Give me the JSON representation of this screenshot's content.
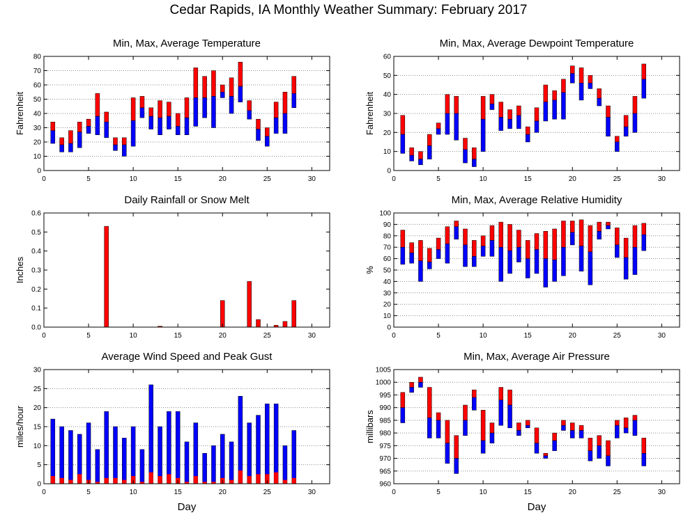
{
  "title": "Cedar Rapids, IA Monthly Weather Summary: February 2017",
  "colors": {
    "max_segment": "#ff0000",
    "min_segment": "#0000ff",
    "grid": "#888888",
    "axis": "#000000"
  },
  "chart_data": [
    {
      "id": "temperature",
      "type": "bar",
      "title": "Min, Max, Average Temperature",
      "ylabel": "Fahrenheit",
      "xlabel": "",
      "xlim": [
        0,
        32
      ],
      "ylim": [
        0,
        80
      ],
      "xticks": [
        0,
        5,
        10,
        15,
        20,
        25,
        30
      ],
      "yticks": [
        0,
        10,
        20,
        30,
        40,
        50,
        60,
        70,
        80
      ],
      "grid": true,
      "bar_kind": "range",
      "series": [
        {
          "name": "",
          "field": "min"
        },
        {
          "name": "",
          "field": "avg"
        },
        {
          "name": "",
          "field": "max"
        }
      ],
      "points": [
        {
          "day": 1,
          "min": 19,
          "avg": 28,
          "max": 34
        },
        {
          "day": 2,
          "min": 13,
          "avg": 18,
          "max": 23
        },
        {
          "day": 3,
          "min": 13,
          "avg": 19,
          "max": 28
        },
        {
          "day": 4,
          "min": 16,
          "avg": 27,
          "max": 34
        },
        {
          "day": 5,
          "min": 26,
          "avg": 31,
          "max": 36
        },
        {
          "day": 6,
          "min": 25,
          "avg": 38,
          "max": 54
        },
        {
          "day": 7,
          "min": 23,
          "avg": 34,
          "max": 41
        },
        {
          "day": 8,
          "min": 14,
          "avg": 18,
          "max": 23
        },
        {
          "day": 9,
          "min": 10,
          "avg": 18,
          "max": 23
        },
        {
          "day": 10,
          "min": 17,
          "avg": 35,
          "max": 51
        },
        {
          "day": 11,
          "min": 37,
          "avg": 44,
          "max": 52
        },
        {
          "day": 12,
          "min": 29,
          "avg": 38,
          "max": 44
        },
        {
          "day": 13,
          "min": 25,
          "avg": 37,
          "max": 49
        },
        {
          "day": 14,
          "min": 29,
          "avg": 38,
          "max": 48
        },
        {
          "day": 15,
          "min": 25,
          "avg": 31,
          "max": 40
        },
        {
          "day": 16,
          "min": 25,
          "avg": 37,
          "max": 51
        },
        {
          "day": 17,
          "min": 31,
          "avg": 51,
          "max": 72
        },
        {
          "day": 18,
          "min": 37,
          "avg": 51,
          "max": 66
        },
        {
          "day": 19,
          "min": 30,
          "avg": 52,
          "max": 70
        },
        {
          "day": 20,
          "min": 51,
          "avg": 55,
          "max": 60
        },
        {
          "day": 21,
          "min": 40,
          "avg": 52,
          "max": 65
        },
        {
          "day": 22,
          "min": 48,
          "avg": 59,
          "max": 76
        },
        {
          "day": 23,
          "min": 36,
          "avg": 42,
          "max": 49
        },
        {
          "day": 24,
          "min": 21,
          "avg": 29,
          "max": 36
        },
        {
          "day": 25,
          "min": 17,
          "avg": 24,
          "max": 30
        },
        {
          "day": 26,
          "min": 26,
          "avg": 37,
          "max": 48
        },
        {
          "day": 27,
          "min": 26,
          "avg": 40,
          "max": 55
        },
        {
          "day": 28,
          "min": 44,
          "avg": 54,
          "max": 66
        }
      ]
    },
    {
      "id": "dewpoint",
      "type": "bar",
      "title": "Min, Max, Average Dewpoint Temperature",
      "ylabel": "Fahrenheit",
      "xlabel": "",
      "xlim": [
        0,
        32
      ],
      "ylim": [
        0,
        60
      ],
      "xticks": [
        0,
        5,
        10,
        15,
        20,
        25,
        30
      ],
      "yticks": [
        0,
        10,
        20,
        30,
        40,
        50,
        60
      ],
      "grid": true,
      "bar_kind": "range",
      "series": [
        {
          "name": "",
          "field": "min"
        },
        {
          "name": "",
          "field": "avg"
        },
        {
          "name": "",
          "field": "max"
        }
      ],
      "points": [
        {
          "day": 1,
          "min": 9,
          "avg": 19,
          "max": 29
        },
        {
          "day": 2,
          "min": 5,
          "avg": 8,
          "max": 12
        },
        {
          "day": 3,
          "min": 3,
          "avg": 6,
          "max": 10
        },
        {
          "day": 4,
          "min": 6,
          "avg": 13,
          "max": 19
        },
        {
          "day": 5,
          "min": 19,
          "avg": 22,
          "max": 25
        },
        {
          "day": 6,
          "min": 19,
          "avg": 30,
          "max": 40
        },
        {
          "day": 7,
          "min": 16,
          "avg": 30,
          "max": 39
        },
        {
          "day": 8,
          "min": 4,
          "avg": 11,
          "max": 17
        },
        {
          "day": 9,
          "min": 2,
          "avg": 6,
          "max": 12
        },
        {
          "day": 10,
          "min": 10,
          "avg": 27,
          "max": 39
        },
        {
          "day": 11,
          "min": 32,
          "avg": 35,
          "max": 40
        },
        {
          "day": 12,
          "min": 21,
          "avg": 28,
          "max": 36
        },
        {
          "day": 13,
          "min": 22,
          "avg": 27,
          "max": 32
        },
        {
          "day": 14,
          "min": 22,
          "avg": 29,
          "max": 34
        },
        {
          "day": 15,
          "min": 15,
          "avg": 19,
          "max": 23
        },
        {
          "day": 16,
          "min": 20,
          "avg": 26,
          "max": 33
        },
        {
          "day": 17,
          "min": 26,
          "avg": 36,
          "max": 45
        },
        {
          "day": 18,
          "min": 27,
          "avg": 37,
          "max": 42
        },
        {
          "day": 19,
          "min": 27,
          "avg": 41,
          "max": 48
        },
        {
          "day": 20,
          "min": 46,
          "avg": 51,
          "max": 55
        },
        {
          "day": 21,
          "min": 37,
          "avg": 46,
          "max": 54
        },
        {
          "day": 22,
          "min": 43,
          "avg": 46,
          "max": 50
        },
        {
          "day": 23,
          "min": 34,
          "avg": 38,
          "max": 43
        },
        {
          "day": 24,
          "min": 18,
          "avg": 28,
          "max": 34
        },
        {
          "day": 25,
          "min": 10,
          "avg": 15,
          "max": 18
        },
        {
          "day": 26,
          "min": 18,
          "avg": 23,
          "max": 29
        },
        {
          "day": 27,
          "min": 20,
          "avg": 30,
          "max": 39
        },
        {
          "day": 28,
          "min": 38,
          "avg": 48,
          "max": 56
        }
      ]
    },
    {
      "id": "rainfall",
      "type": "bar",
      "title": "Daily Rainfall or Snow Melt",
      "ylabel": "Inches",
      "xlabel": "",
      "xlim": [
        0,
        32
      ],
      "ylim": [
        0,
        0.6
      ],
      "xticks": [
        0,
        5,
        10,
        15,
        20,
        25,
        30
      ],
      "yticks": [
        0.0,
        0.1,
        0.2,
        0.3,
        0.4,
        0.5,
        0.6
      ],
      "ytick_labels": [
        "0.0",
        "0.1",
        "0.2",
        "0.3",
        "0.4",
        "0.5",
        "0.6"
      ],
      "grid": false,
      "bar_kind": "simple",
      "series": [
        {
          "name": "",
          "field": "value"
        }
      ],
      "points": [
        {
          "day": 7,
          "value": 0.53
        },
        {
          "day": 13,
          "value": 0.005
        },
        {
          "day": 20,
          "value": 0.14
        },
        {
          "day": 23,
          "value": 0.24
        },
        {
          "day": 24,
          "value": 0.04
        },
        {
          "day": 26,
          "value": 0.01
        },
        {
          "day": 27,
          "value": 0.03
        },
        {
          "day": 28,
          "value": 0.14
        }
      ]
    },
    {
      "id": "humidity",
      "type": "bar",
      "title": "Min, Max, Average Relative Humidity",
      "ylabel": "%",
      "xlabel": "",
      "xlim": [
        0,
        32
      ],
      "ylim": [
        0,
        100
      ],
      "xticks": [
        0,
        5,
        10,
        15,
        20,
        25,
        30
      ],
      "yticks": [
        0,
        10,
        20,
        30,
        40,
        50,
        60,
        70,
        80,
        90,
        100
      ],
      "grid": true,
      "bar_kind": "range",
      "series": [
        {
          "name": "",
          "field": "min"
        },
        {
          "name": "",
          "field": "avg"
        },
        {
          "name": "",
          "field": "max"
        }
      ],
      "points": [
        {
          "day": 1,
          "min": 55,
          "avg": 70,
          "max": 85
        },
        {
          "day": 2,
          "min": 56,
          "avg": 65,
          "max": 74
        },
        {
          "day": 3,
          "min": 40,
          "avg": 58,
          "max": 76
        },
        {
          "day": 4,
          "min": 51,
          "avg": 57,
          "max": 69
        },
        {
          "day": 5,
          "min": 60,
          "avg": 68,
          "max": 78
        },
        {
          "day": 6,
          "min": 56,
          "avg": 73,
          "max": 88
        },
        {
          "day": 7,
          "min": 77,
          "avg": 88,
          "max": 93
        },
        {
          "day": 8,
          "min": 53,
          "avg": 72,
          "max": 86
        },
        {
          "day": 9,
          "min": 53,
          "avg": 62,
          "max": 76
        },
        {
          "day": 10,
          "min": 62,
          "avg": 71,
          "max": 80
        },
        {
          "day": 11,
          "min": 62,
          "avg": 76,
          "max": 89
        },
        {
          "day": 12,
          "min": 40,
          "avg": 70,
          "max": 92
        },
        {
          "day": 13,
          "min": 47,
          "avg": 67,
          "max": 90
        },
        {
          "day": 14,
          "min": 57,
          "avg": 70,
          "max": 85
        },
        {
          "day": 15,
          "min": 43,
          "avg": 60,
          "max": 76
        },
        {
          "day": 16,
          "min": 47,
          "avg": 68,
          "max": 82
        },
        {
          "day": 17,
          "min": 35,
          "avg": 60,
          "max": 84
        },
        {
          "day": 18,
          "min": 40,
          "avg": 59,
          "max": 86
        },
        {
          "day": 19,
          "min": 45,
          "avg": 70,
          "max": 93
        },
        {
          "day": 20,
          "min": 72,
          "avg": 83,
          "max": 93
        },
        {
          "day": 21,
          "min": 49,
          "avg": 71,
          "max": 94
        },
        {
          "day": 22,
          "min": 37,
          "avg": 66,
          "max": 89
        },
        {
          "day": 23,
          "min": 77,
          "avg": 84,
          "max": 92
        },
        {
          "day": 24,
          "min": 86,
          "avg": 89,
          "max": 92
        },
        {
          "day": 25,
          "min": 61,
          "avg": 72,
          "max": 87
        },
        {
          "day": 26,
          "min": 42,
          "avg": 61,
          "max": 78
        },
        {
          "day": 27,
          "min": 46,
          "avg": 70,
          "max": 89
        },
        {
          "day": 28,
          "min": 67,
          "avg": 81,
          "max": 91
        }
      ]
    },
    {
      "id": "wind",
      "type": "bar",
      "title": "Average Wind Speed and Peak Gust",
      "ylabel": "miles/hour",
      "xlabel": "Day",
      "xlim": [
        0,
        32
      ],
      "ylim": [
        0,
        30
      ],
      "xticks": [
        0,
        5,
        10,
        15,
        20,
        25,
        30
      ],
      "yticks": [
        0,
        5,
        10,
        15,
        20,
        25,
        30
      ],
      "grid": true,
      "bar_kind": "stacked",
      "series": [
        {
          "name": "",
          "field": "avg"
        },
        {
          "name": "",
          "field": "gust"
        }
      ],
      "points": [
        {
          "day": 1,
          "avg": 2,
          "gust": 17
        },
        {
          "day": 2,
          "avg": 1.5,
          "gust": 15
        },
        {
          "day": 3,
          "avg": 1,
          "gust": 14
        },
        {
          "day": 4,
          "avg": 2.5,
          "gust": 13
        },
        {
          "day": 5,
          "avg": 1,
          "gust": 16
        },
        {
          "day": 6,
          "avg": 0.5,
          "gust": 9
        },
        {
          "day": 7,
          "avg": 1.5,
          "gust": 19
        },
        {
          "day": 8,
          "avg": 1.5,
          "gust": 15
        },
        {
          "day": 9,
          "avg": 1,
          "gust": 12
        },
        {
          "day": 10,
          "avg": 2,
          "gust": 15
        },
        {
          "day": 11,
          "avg": 0.5,
          "gust": 9
        },
        {
          "day": 12,
          "avg": 3,
          "gust": 26
        },
        {
          "day": 13,
          "avg": 2,
          "gust": 15
        },
        {
          "day": 14,
          "avg": 2.5,
          "gust": 19
        },
        {
          "day": 15,
          "avg": 1.5,
          "gust": 19
        },
        {
          "day": 16,
          "avg": 0.5,
          "gust": 11
        },
        {
          "day": 17,
          "avg": 2,
          "gust": 16
        },
        {
          "day": 18,
          "avg": 0.5,
          "gust": 8
        },
        {
          "day": 19,
          "avg": 0.5,
          "gust": 10
        },
        {
          "day": 20,
          "avg": 1.5,
          "gust": 13
        },
        {
          "day": 21,
          "avg": 1,
          "gust": 11
        },
        {
          "day": 22,
          "avg": 3.5,
          "gust": 23
        },
        {
          "day": 23,
          "avg": 2,
          "gust": 16
        },
        {
          "day": 24,
          "avg": 2.5,
          "gust": 18
        },
        {
          "day": 25,
          "avg": 2.5,
          "gust": 21
        },
        {
          "day": 26,
          "avg": 3,
          "gust": 21
        },
        {
          "day": 27,
          "avg": 1,
          "gust": 10
        },
        {
          "day": 28,
          "avg": 1.5,
          "gust": 14
        }
      ]
    },
    {
      "id": "pressure",
      "type": "bar",
      "title": "Min, Max, Average Air Pressure",
      "ylabel": "millibars",
      "xlabel": "Day",
      "xlim": [
        0,
        32
      ],
      "ylim": [
        960,
        1005
      ],
      "xticks": [
        0,
        5,
        10,
        15,
        20,
        25,
        30
      ],
      "yticks": [
        960,
        965,
        970,
        975,
        980,
        985,
        990,
        995,
        1000,
        1005
      ],
      "grid": true,
      "bar_kind": "range",
      "series": [
        {
          "name": "",
          "field": "min"
        },
        {
          "name": "",
          "field": "avg"
        },
        {
          "name": "",
          "field": "max"
        }
      ],
      "points": [
        {
          "day": 1,
          "min": 984,
          "avg": 990,
          "max": 996
        },
        {
          "day": 2,
          "min": 996,
          "avg": 998,
          "max": 1000
        },
        {
          "day": 3,
          "min": 998,
          "avg": 1000,
          "max": 1002
        },
        {
          "day": 4,
          "min": 978,
          "avg": 986,
          "max": 998
        },
        {
          "day": 5,
          "min": 978,
          "avg": 985,
          "max": 988
        },
        {
          "day": 6,
          "min": 968,
          "avg": 976,
          "max": 985
        },
        {
          "day": 7,
          "min": 964,
          "avg": 970,
          "max": 979
        },
        {
          "day": 8,
          "min": 979,
          "avg": 985,
          "max": 991
        },
        {
          "day": 9,
          "min": 989,
          "avg": 994,
          "max": 997
        },
        {
          "day": 10,
          "min": 972,
          "avg": 977,
          "max": 989
        },
        {
          "day": 11,
          "min": 976,
          "avg": 980,
          "max": 984
        },
        {
          "day": 12,
          "min": 983,
          "avg": 993,
          "max": 998
        },
        {
          "day": 13,
          "min": 982,
          "avg": 991,
          "max": 997
        },
        {
          "day": 14,
          "min": 979,
          "avg": 981,
          "max": 984
        },
        {
          "day": 15,
          "min": 982,
          "avg": 983,
          "max": 985
        },
        {
          "day": 16,
          "min": 972,
          "avg": 976,
          "max": 982
        },
        {
          "day": 17,
          "min": 970,
          "avg": 971,
          "max": 972
        },
        {
          "day": 18,
          "min": 973,
          "avg": 977,
          "max": 980
        },
        {
          "day": 19,
          "min": 981,
          "avg": 983,
          "max": 985
        },
        {
          "day": 20,
          "min": 978,
          "avg": 981,
          "max": 984
        },
        {
          "day": 21,
          "min": 978,
          "avg": 981,
          "max": 983
        },
        {
          "day": 22,
          "min": 969,
          "avg": 973,
          "max": 978
        },
        {
          "day": 23,
          "min": 970,
          "avg": 975,
          "max": 979
        },
        {
          "day": 24,
          "min": 967,
          "avg": 971,
          "max": 977
        },
        {
          "day": 25,
          "min": 978,
          "avg": 983,
          "max": 985
        },
        {
          "day": 26,
          "min": 980,
          "avg": 982,
          "max": 986
        },
        {
          "day": 27,
          "min": 979,
          "avg": 985,
          "max": 987
        },
        {
          "day": 28,
          "min": 967,
          "avg": 972,
          "max": 978
        }
      ]
    }
  ]
}
